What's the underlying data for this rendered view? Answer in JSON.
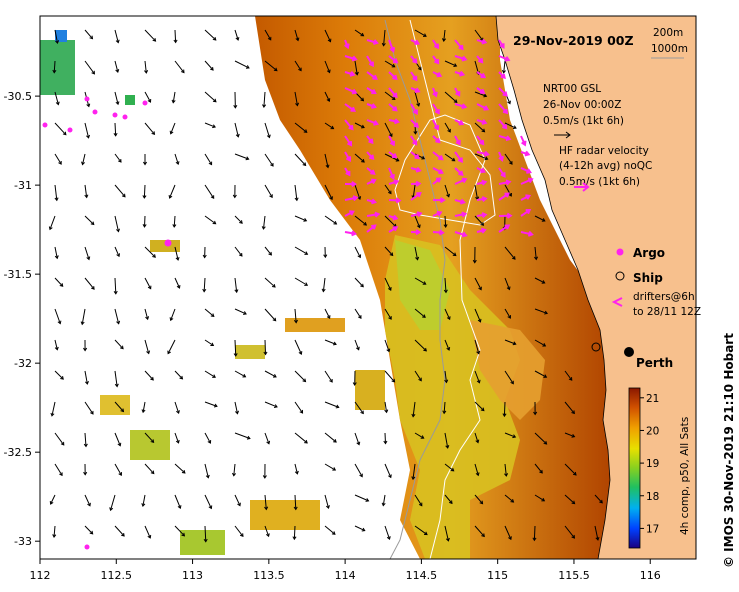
{
  "map": {
    "title": "29-Nov-2019 00Z",
    "lon_ticks": [
      "112",
      "112.5",
      "113",
      "113.5",
      "114",
      "114.5",
      "115",
      "115.5",
      "116"
    ],
    "lat_ticks": [
      "-30.5",
      "-31",
      "-31.5",
      "-32",
      "-32.5",
      "-33"
    ],
    "lon_range": [
      112,
      116.3
    ],
    "lat_range": [
      -33.1,
      -30.05
    ],
    "contours": {
      "label_200": "200m",
      "label_1000": "1000m"
    },
    "nrt": {
      "line1": "NRT00 GSL",
      "line2": "26-Nov 00:00Z",
      "line3": "0.5m/s (1kt 6h)"
    },
    "radar": {
      "line1": "HF radar velocity",
      "line2": "(4-12h avg) noQC",
      "line3": "0.5m/s (1kt 6h)"
    },
    "markers": {
      "argo": "Argo",
      "ship": "Ship",
      "drifters1": "drifters@6h",
      "drifters2": "to 28/11 12Z"
    },
    "city": {
      "name": "Perth"
    },
    "colorbar": {
      "ticks": [
        "21",
        "20",
        "19",
        "18",
        "17"
      ],
      "label": "4h comp, p50, All Sats"
    },
    "credit": "© IMOS 30-Nov-2019 21:10 Hobart",
    "colors": {
      "land": "#f7c08d",
      "hf_radar_arrow": "#ff22ee",
      "grid_arrow": "#000000",
      "contour_200": "#ffffff",
      "contour_1000": "#9a9a9a",
      "city_marker": "#000000"
    }
  }
}
